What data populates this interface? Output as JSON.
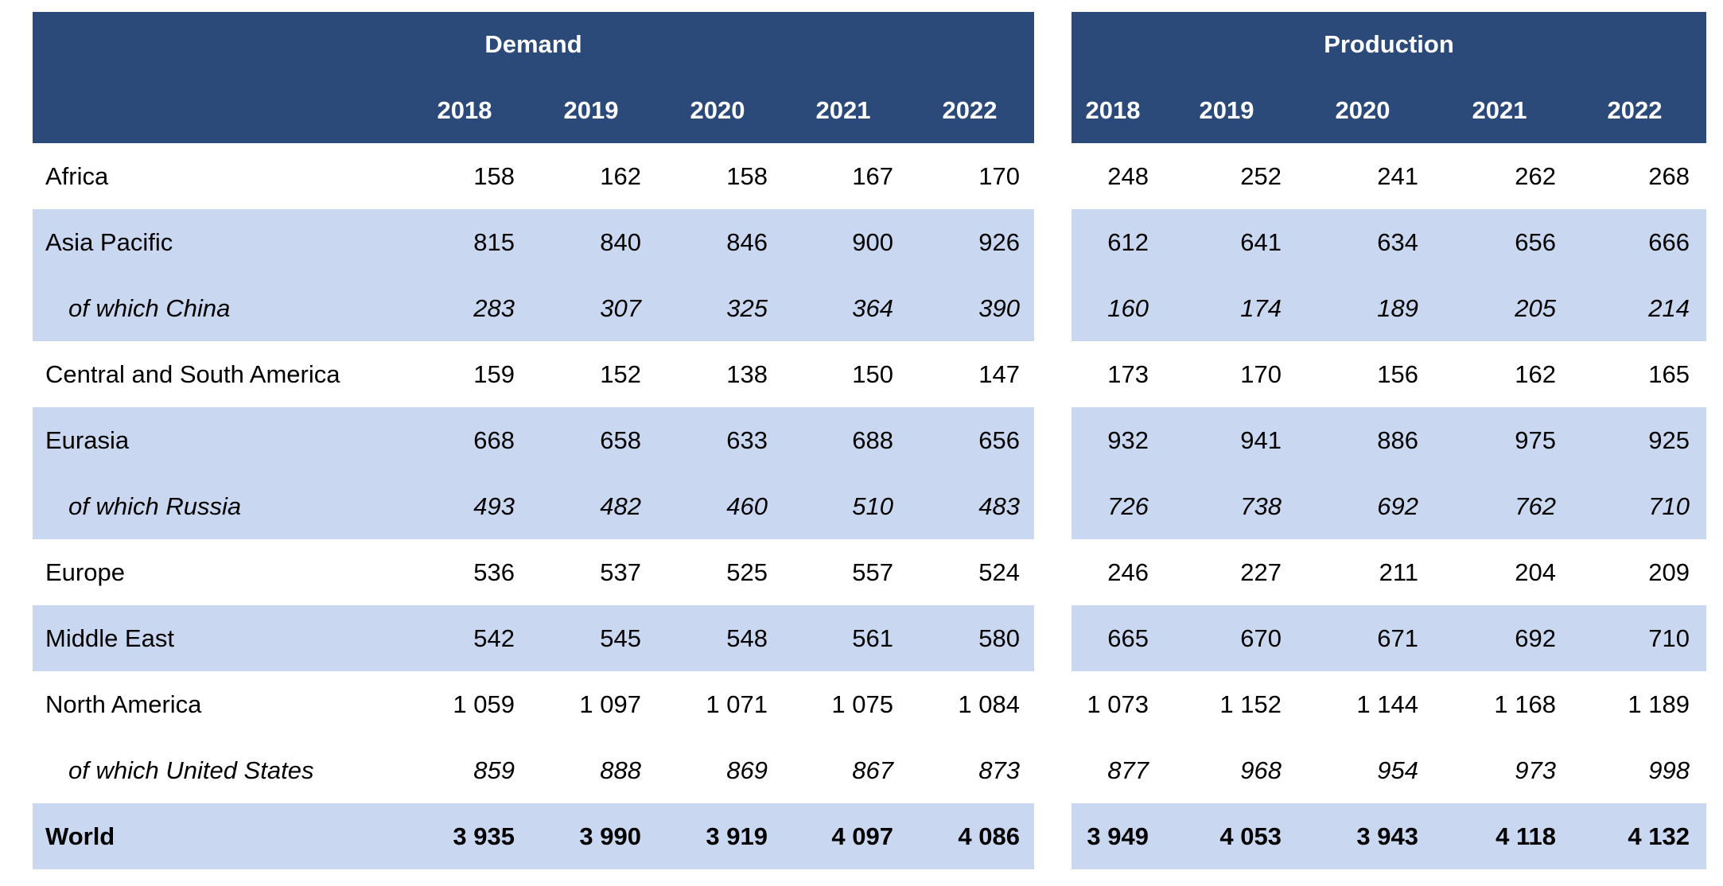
{
  "header": {
    "demand_title": "Demand",
    "production_title": "Production",
    "demand_years": [
      "2018",
      "2019",
      "2020",
      "2021",
      "2022"
    ],
    "production_years": [
      "2018",
      "2019",
      "2020",
      "2021",
      "2022"
    ]
  },
  "rows": [
    {
      "label": "Africa",
      "style": "normal",
      "shaded": false,
      "demand": [
        "158",
        "162",
        "158",
        "167",
        "170"
      ],
      "production": [
        "248",
        "252",
        "241",
        "262",
        "268"
      ]
    },
    {
      "label": "Asia Pacific",
      "style": "normal",
      "shaded": true,
      "demand": [
        "815",
        "840",
        "846",
        "900",
        "926"
      ],
      "production": [
        "612",
        "641",
        "634",
        "656",
        "666"
      ]
    },
    {
      "label": "of which China",
      "style": "sub",
      "shaded": true,
      "demand": [
        "283",
        "307",
        "325",
        "364",
        "390"
      ],
      "production": [
        "160",
        "174",
        "189",
        "205",
        "214"
      ]
    },
    {
      "label": "Central and South America",
      "style": "normal",
      "shaded": false,
      "demand": [
        "159",
        "152",
        "138",
        "150",
        "147"
      ],
      "production": [
        "173",
        "170",
        "156",
        "162",
        "165"
      ]
    },
    {
      "label": "Eurasia",
      "style": "normal",
      "shaded": true,
      "demand": [
        "668",
        "658",
        "633",
        "688",
        "656"
      ],
      "production": [
        "932",
        "941",
        "886",
        "975",
        "925"
      ]
    },
    {
      "label": "of which Russia",
      "style": "sub",
      "shaded": true,
      "demand": [
        "493",
        "482",
        "460",
        "510",
        "483"
      ],
      "production": [
        "726",
        "738",
        "692",
        "762",
        "710"
      ]
    },
    {
      "label": "Europe",
      "style": "normal",
      "shaded": false,
      "demand": [
        "536",
        "537",
        "525",
        "557",
        "524"
      ],
      "production": [
        "246",
        "227",
        "211",
        "204",
        "209"
      ]
    },
    {
      "label": "Middle East",
      "style": "normal",
      "shaded": true,
      "demand": [
        "542",
        "545",
        "548",
        "561",
        "580"
      ],
      "production": [
        "665",
        "670",
        "671",
        "692",
        "710"
      ]
    },
    {
      "label": "North America",
      "style": "normal",
      "shaded": false,
      "demand": [
        "1 059",
        "1 097",
        "1 071",
        "1 075",
        "1 084"
      ],
      "production": [
        "1 073",
        "1 152",
        "1 144",
        "1 168",
        "1 189"
      ]
    },
    {
      "label": "of which United States",
      "style": "sub",
      "shaded": false,
      "demand": [
        "859",
        "888",
        "869",
        "867",
        "873"
      ],
      "production": [
        "877",
        "968",
        "954",
        "973",
        "998"
      ]
    },
    {
      "label": "World",
      "style": "bold",
      "shaded": true,
      "demand": [
        "3 935",
        "3 990",
        "3 919",
        "4 097",
        "4 086"
      ],
      "production": [
        "3 949",
        "4 053",
        "3 943",
        "4 118",
        "4 132"
      ]
    }
  ]
}
